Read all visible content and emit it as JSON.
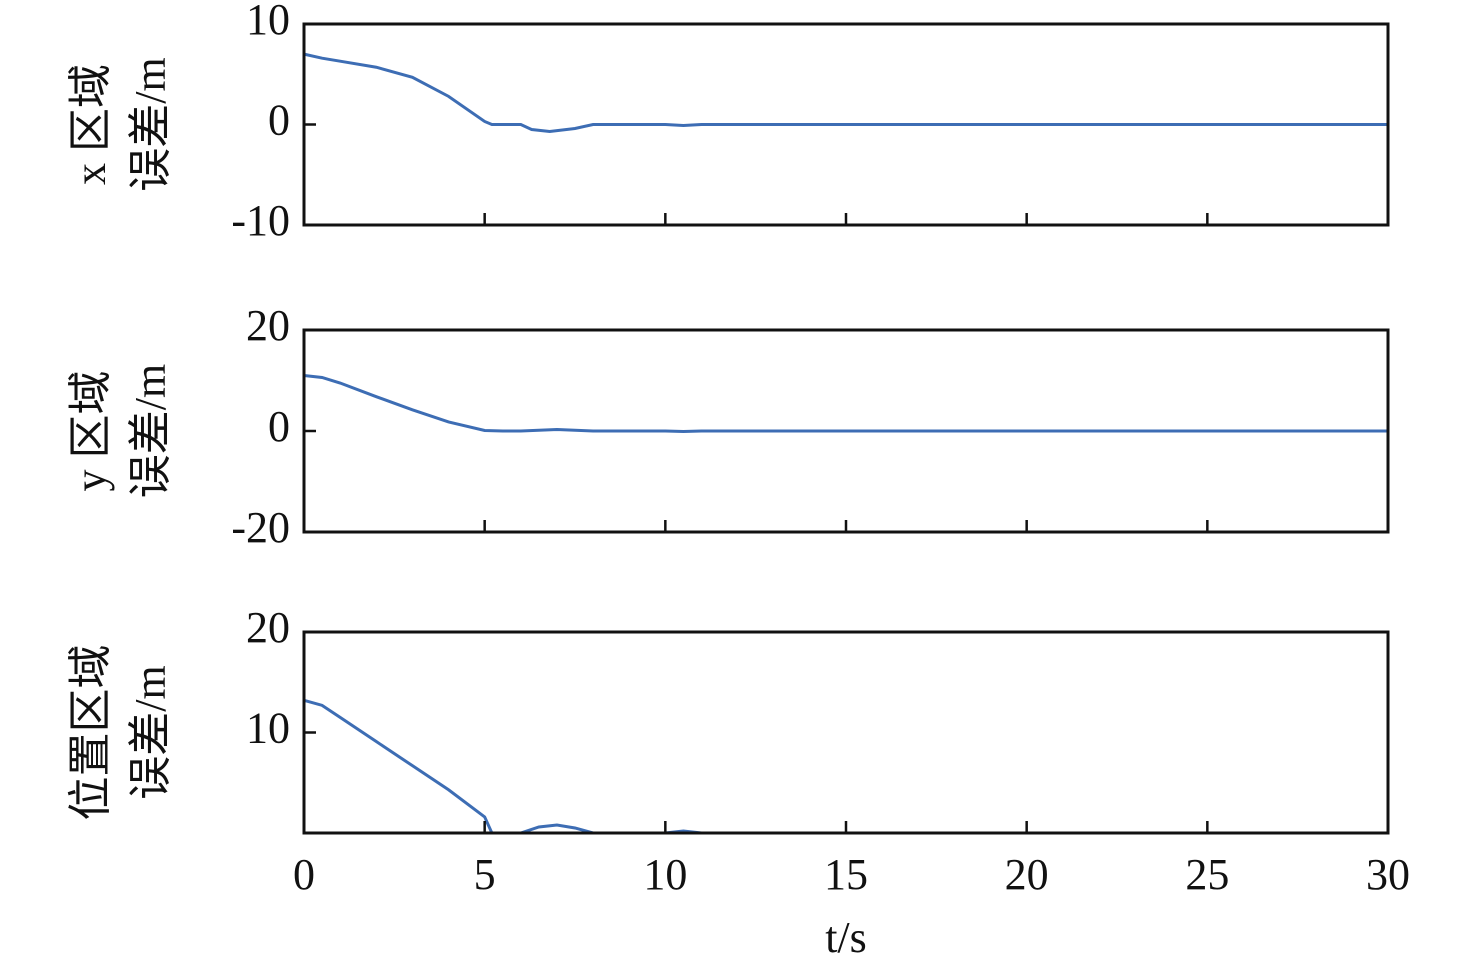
{
  "chart_data": [
    {
      "type": "line",
      "ylabel": [
        "x 区域",
        "误差/m"
      ],
      "xlim": [
        0,
        30
      ],
      "xticks": [
        0,
        5,
        10,
        15,
        20,
        25,
        30
      ],
      "ylim": [
        -10,
        10
      ],
      "yticks": [
        -10,
        0,
        10
      ],
      "series": [
        {
          "color": "#3d6db4",
          "x": [
            0,
            0.5,
            1,
            2,
            3,
            4,
            5,
            5.2,
            6,
            6.3,
            6.8,
            7.5,
            8,
            10,
            10.5,
            11,
            30
          ],
          "values": [
            7,
            6.6,
            6.3,
            5.7,
            4.7,
            2.8,
            0.3,
            0,
            0,
            -0.5,
            -0.7,
            -0.4,
            0,
            0,
            -0.1,
            0,
            0
          ]
        }
      ]
    },
    {
      "type": "line",
      "ylabel": [
        "y 区域",
        "误差/m"
      ],
      "xlim": [
        0,
        30
      ],
      "xticks": [
        0,
        5,
        10,
        15,
        20,
        25,
        30
      ],
      "ylim": [
        -20,
        20
      ],
      "yticks": [
        -20,
        0,
        20
      ],
      "series": [
        {
          "color": "#3d6db4",
          "x": [
            0,
            0.5,
            1,
            2,
            3,
            4,
            5,
            5.5,
            6,
            7,
            8,
            10,
            10.5,
            11,
            30
          ],
          "values": [
            11,
            10.6,
            9.5,
            6.8,
            4.2,
            1.8,
            0.1,
            0,
            0,
            0.3,
            0,
            0,
            -0.1,
            0,
            0
          ]
        }
      ]
    },
    {
      "type": "line",
      "ylabel": [
        "位置区域",
        "误差/m"
      ],
      "xlabel": "t/s",
      "xlim": [
        0,
        30
      ],
      "xticks": [
        0,
        5,
        10,
        15,
        20,
        25,
        30
      ],
      "ylim": [
        0,
        20
      ],
      "yticks": [
        10,
        20
      ],
      "series": [
        {
          "color": "#3d6db4",
          "x": [
            0,
            0.5,
            1,
            2,
            3,
            4,
            5,
            5.2,
            6,
            6.5,
            7,
            7.5,
            8,
            10,
            10.5,
            11,
            30
          ],
          "values": [
            13.2,
            12.7,
            11.5,
            9.1,
            6.7,
            4.3,
            1.6,
            0,
            0,
            0.6,
            0.8,
            0.5,
            0,
            0,
            0.2,
            0,
            0
          ]
        }
      ]
    }
  ]
}
